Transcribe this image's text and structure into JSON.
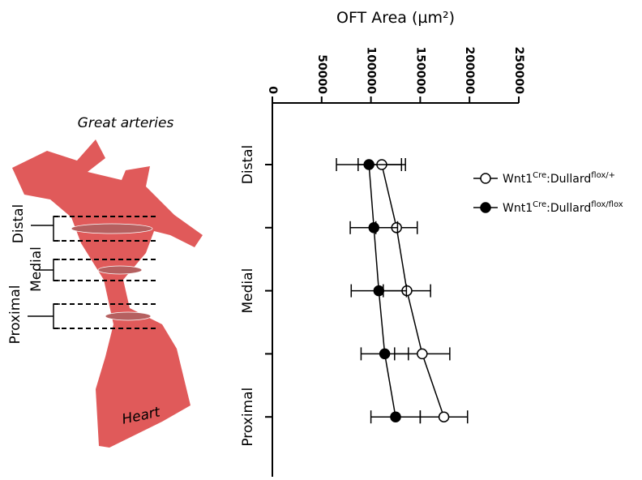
{
  "diagram": {
    "top_label": "Great arteries",
    "bottom_label": "Heart",
    "region_labels": [
      "Distal",
      "Medial",
      "Proximal"
    ]
  },
  "chart_data": {
    "type": "line",
    "xlabel": "OFT Area (µm²)",
    "categories": [
      "Distal",
      null,
      "Medial",
      null,
      "Proximal"
    ],
    "xlim": [
      0,
      250000
    ],
    "xticks": [
      0,
      50000,
      100000,
      150000,
      200000,
      250000
    ],
    "series": [
      {
        "name": [
          "Wnt1",
          "Cre",
          ":Dullard",
          "flox/+"
        ],
        "color": "#000000",
        "marker": "open",
        "values": [
          111000,
          126000,
          136500,
          152000,
          174000
        ],
        "errors": [
          24000,
          21000,
          24000,
          28000,
          24000
        ]
      },
      {
        "name": [
          "Wnt1",
          "Cre",
          ":Dullard",
          "flox/flox"
        ],
        "color": "#000000",
        "marker": "filled",
        "values": [
          98000,
          103000,
          108000,
          114000,
          125000
        ],
        "errors": [
          33000,
          24000,
          28000,
          24000,
          25000
        ]
      }
    ]
  }
}
